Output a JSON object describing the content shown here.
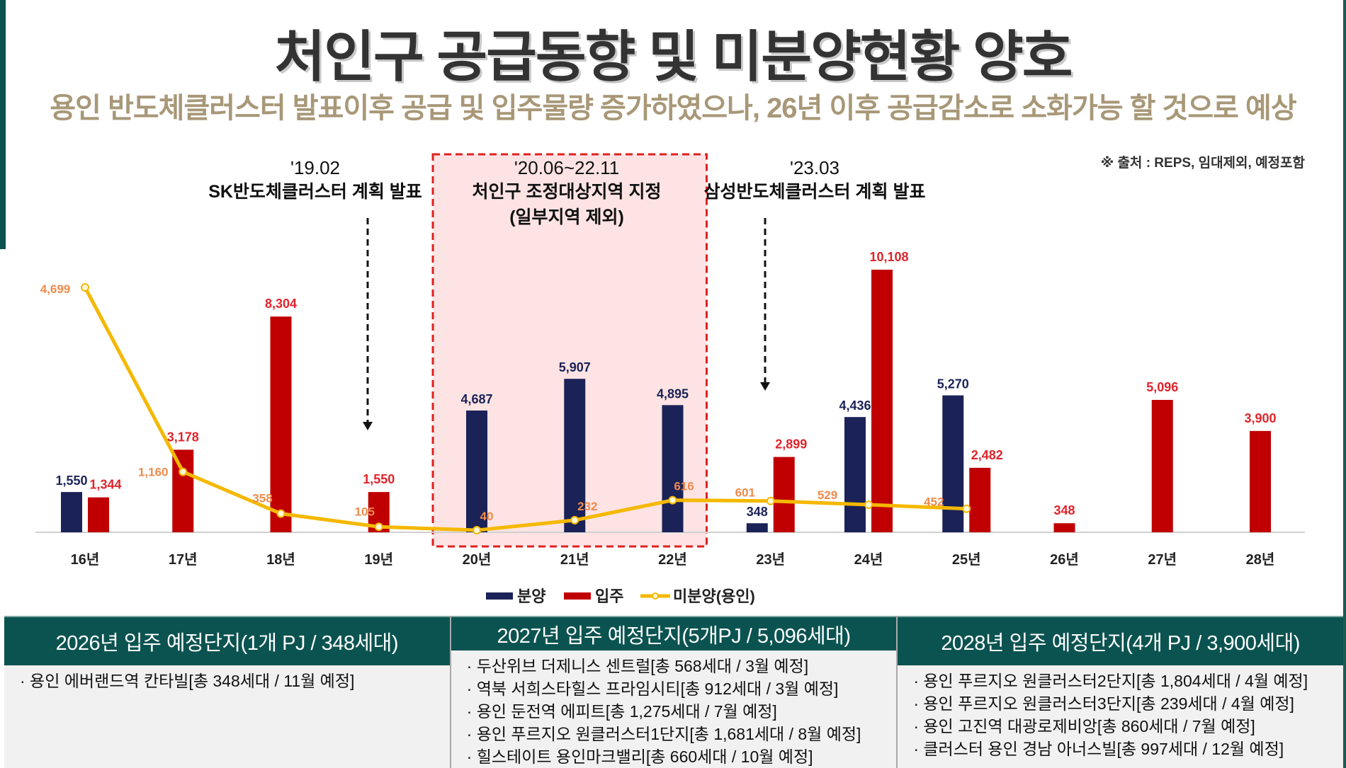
{
  "header": {
    "title": "처인구 공급동향 및 미분양현황 양호",
    "subtitle": "용인 반도체클러스터 발표이후 공급 및 입주물량 증가하였으나, 26년 이후 공급감소로 소화가능 할 것으로 예상",
    "source": "※ 출처 : REPS, 임대제외, 예정포함"
  },
  "annotations": [
    {
      "date": "'19.02",
      "desc": "SK반도체클러스터 계획 발표"
    },
    {
      "date": "'20.06~22.11",
      "desc": "처인구 조정대상지역 지정",
      "desc2": "(일부지역 제외)"
    },
    {
      "date": "'23.03",
      "desc": "삼성반도체클러스터 계획 발표"
    }
  ],
  "colors": {
    "bunyang": "#1b2257",
    "ipju": "#c00000",
    "mibunyang": "#f5b800",
    "mibunyang_label": "#f08a4b",
    "highlight_box": "#fde3e3",
    "highlight_border": "#e02020",
    "table_header": "#0b5350"
  },
  "chart_data": {
    "type": "bar",
    "title": "",
    "xlabel": "",
    "ylabel": "",
    "grid": false,
    "legend_position": "bottom",
    "categories": [
      "16년",
      "17년",
      "18년",
      "19년",
      "20년",
      "21년",
      "22년",
      "23년",
      "24년",
      "25년",
      "26년",
      "27년",
      "28년"
    ],
    "series": [
      {
        "name": "분양",
        "type": "bar",
        "values": [
          1550,
          null,
          null,
          null,
          4687,
          5907,
          4895,
          348,
          4436,
          5270,
          null,
          null,
          null
        ],
        "labels": [
          "1,550",
          "",
          "",
          "",
          "4,687",
          "5,907",
          "4,895",
          "348",
          "4,436",
          "5,270",
          "",
          "",
          ""
        ]
      },
      {
        "name": "입주",
        "type": "bar",
        "values": [
          1344,
          3178,
          8304,
          1550,
          null,
          null,
          null,
          2899,
          10108,
          2482,
          348,
          5096,
          3900
        ],
        "labels": [
          "1,344",
          "3,178",
          "8,304",
          "1,550",
          "",
          "",
          "",
          "2,899",
          "10,108",
          "2,482",
          "348",
          "5,096",
          "3,900"
        ]
      },
      {
        "name": "미분양(용인)",
        "type": "line",
        "values": [
          4699,
          1160,
          358,
          105,
          40,
          232,
          616,
          601,
          529,
          452,
          null,
          null,
          null
        ],
        "labels": [
          "4,699",
          "1,160",
          "358",
          "105",
          "40",
          "232",
          "616",
          "601",
          "529",
          "452",
          "",
          "",
          ""
        ]
      }
    ],
    "ylim_bar": [
      0,
      10108
    ],
    "ylim_line": [
      0,
      4699
    ],
    "highlight_range": [
      "20년",
      "22년"
    ]
  },
  "table": [
    {
      "header": "2026년 입주 예정단지(1개 PJ / 348세대)",
      "items": [
        "· 용인 에버랜드역 칸타빌[총 348세대 / 11월 예정]"
      ]
    },
    {
      "header": "2027년 입주 예정단지(5개PJ / 5,096세대)",
      "items": [
        "· 두산위브 더제니스 센트럴[총 568세대 / 3월 예정]",
        "· 역북 서희스타힐스 프라임시티[총 912세대 / 3월 예정]",
        "· 용인 둔전역 에피트[총 1,275세대 / 7월 예정]",
        "· 용인 푸르지오 원클러스터1단지[총 1,681세대 / 8월 예정]",
        "· 힐스테이트 용인마크밸리[총 660세대 / 10월 예정]"
      ]
    },
    {
      "header": "2028년 입주 예정단지(4개 PJ / 3,900세대)",
      "items": [
        "· 용인 푸르지오 원클러스터2단지[총 1,804세대 / 4월 예정]",
        "· 용인 푸르지오 원클러스터3단지[총 239세대 / 4월 예정]",
        "· 용인 고진역 대광로제비앙[총 860세대 / 7월 예정]",
        "· 클러스터 용인 경남 아너스빌[총 997세대 / 12월 예정]"
      ]
    }
  ]
}
